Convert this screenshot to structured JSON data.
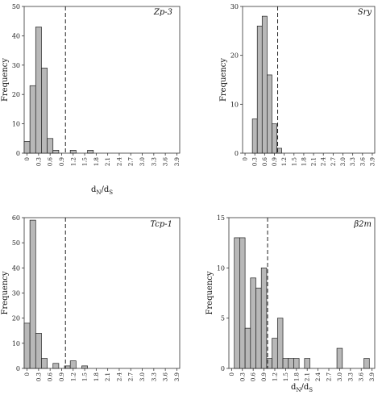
{
  "chart_data": [
    {
      "type": "bar",
      "title": "Zp-3",
      "xlabel": "dN/dS",
      "ylabel": "Frequency",
      "xticks": [
        "0",
        "0.3",
        "0.6",
        "0.9",
        "1.2",
        "1.5",
        "1.8",
        "2.1",
        "2.4",
        "2.7",
        "3.0",
        "3.3",
        "3.6",
        "3.9"
      ],
      "bin_width": 0.15,
      "x": [
        0,
        0.15,
        0.3,
        0.45,
        0.6,
        0.75,
        1.2,
        1.65
      ],
      "values": [
        4,
        23,
        43,
        29,
        5,
        1,
        1,
        1
      ],
      "ylim": [
        0,
        50
      ],
      "yticks": [
        0,
        10,
        20,
        30,
        40,
        50
      ],
      "reference_line": 1.0
    },
    {
      "type": "bar",
      "title": "Sry",
      "xlabel": "",
      "ylabel": "Frequency",
      "xticks": [
        "0",
        "0.3",
        "0.6",
        "0.9",
        "1.2",
        "1.5",
        "1.8",
        "2.1",
        "2.4",
        "2.7",
        "3.0",
        "3.3",
        "3.6",
        "3.9"
      ],
      "bin_width": 0.15,
      "x": [
        0.3,
        0.45,
        0.6,
        0.75,
        0.9,
        1.05
      ],
      "values": [
        7,
        26,
        28,
        16,
        6,
        1
      ],
      "ylim": [
        0,
        30
      ],
      "yticks": [
        0,
        10,
        20,
        30
      ],
      "reference_line": 1.0
    },
    {
      "type": "bar",
      "title": "Tcp-1",
      "xlabel": "",
      "ylabel": "Frequency",
      "xticks": [
        "0",
        "0.3",
        "0.6",
        "0.9",
        "1.2",
        "1.5",
        "1.8",
        "2.1",
        "2.4",
        "2.7",
        "3.0",
        "3.3",
        "3.6",
        "3.9"
      ],
      "bin_width": 0.15,
      "x": [
        0,
        0.15,
        0.3,
        0.45,
        0.75,
        1.05,
        1.2,
        1.5
      ],
      "values": [
        18,
        59,
        14,
        4,
        2,
        1,
        3,
        1
      ],
      "ylim": [
        0,
        60
      ],
      "yticks": [
        0,
        10,
        20,
        30,
        40,
        50,
        60
      ],
      "reference_line": 1.0
    },
    {
      "type": "bar",
      "title": "β2m",
      "xlabel": "dN/dS",
      "ylabel": "Frequency",
      "xticks": [
        "0",
        "0.3",
        "0.6",
        "0.9",
        "1.2",
        "1.5",
        "1.8",
        "2.1",
        "2.4",
        "2.7",
        "3.0",
        "3.3",
        "3.6",
        "3.9"
      ],
      "bin_width": 0.15,
      "x": [
        0.15,
        0.3,
        0.45,
        0.6,
        0.75,
        0.9,
        1.05,
        1.2,
        1.35,
        1.5,
        1.65,
        1.8,
        2.1,
        3.0,
        3.75
      ],
      "values": [
        13,
        13,
        4,
        9,
        8,
        10,
        1,
        3,
        5,
        1,
        1,
        1,
        1,
        2,
        1
      ],
      "ylim": [
        0,
        15
      ],
      "yticks": [
        0,
        5,
        10,
        15
      ],
      "reference_line": 1.0
    }
  ]
}
